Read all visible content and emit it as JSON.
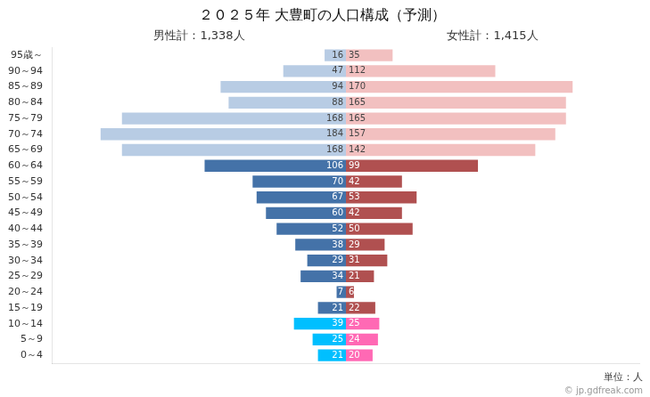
{
  "chart_data": {
    "type": "bar",
    "orientation": "horizontal",
    "title": "２０２５年 大豊町の人口構成（予測）",
    "annotations": [
      "男性計：1,338人",
      "女性計：1,415人",
      "単位：人",
      "© jp.gdfreak.com"
    ],
    "categories": [
      "95歳～",
      "90～94",
      "85～89",
      "80～84",
      "75～79",
      "70～74",
      "65～69",
      "60～64",
      "55～59",
      "50～54",
      "45～49",
      "40～44",
      "35～39",
      "30～34",
      "25～29",
      "20～24",
      "15～19",
      "10～14",
      "5～9",
      "0～4"
    ],
    "series": [
      {
        "values": [
          16,
          47,
          94,
          88,
          168,
          184,
          168,
          106,
          70,
          67,
          60,
          52,
          38,
          29,
          34,
          7,
          21,
          39,
          25,
          21
        ],
        "colors": [
          "#b8cce4",
          "#b8cce4",
          "#b8cce4",
          "#b8cce4",
          "#b8cce4",
          "#b8cce4",
          "#b8cce4",
          "#4472a8",
          "#4472a8",
          "#4472a8",
          "#4472a8",
          "#4472a8",
          "#4472a8",
          "#4472a8",
          "#4472a8",
          "#4472a8",
          "#4472a8",
          "#00bfff",
          "#00bfff",
          "#00bfff"
        ]
      },
      {
        "values": [
          35,
          112,
          170,
          165,
          165,
          157,
          142,
          99,
          42,
          53,
          42,
          50,
          29,
          31,
          21,
          6,
          22,
          25,
          24,
          20
        ],
        "colors": [
          "#f2c0c0",
          "#f2c0c0",
          "#f2c0c0",
          "#f2c0c0",
          "#f2c0c0",
          "#f2c0c0",
          "#f2c0c0",
          "#b05050",
          "#b05050",
          "#b05050",
          "#b05050",
          "#b05050",
          "#b05050",
          "#b05050",
          "#b05050",
          "#b05050",
          "#b05050",
          "#ff69b4",
          "#ff69b4",
          "#ff69b4"
        ]
      }
    ],
    "xlim": [
      -220,
      220
    ],
    "grid": false,
    "data_labels": true,
    "tick_labels": "y"
  }
}
